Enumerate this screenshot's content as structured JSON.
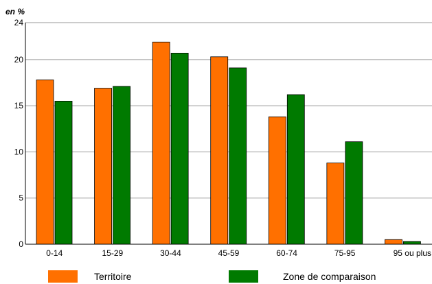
{
  "chart_data": {
    "type": "bar",
    "unit_label": "en %",
    "categories": [
      "0-14",
      "15-29",
      "30-44",
      "45-59",
      "60-74",
      "75-95",
      "95 ou plus"
    ],
    "series": [
      {
        "name": "Territoire",
        "color": "#ff7000",
        "values": [
          17.8,
          16.9,
          21.9,
          20.3,
          13.8,
          8.8,
          0.5
        ]
      },
      {
        "name": "Zone de comparaison",
        "color": "#007a00",
        "values": [
          15.5,
          17.1,
          20.7,
          19.1,
          16.2,
          11.1,
          0.3
        ]
      }
    ],
    "ylim": [
      0,
      24
    ],
    "yticks": [
      0,
      5,
      10,
      15,
      20,
      24
    ],
    "grid": true,
    "legend_position": "bottom",
    "xlabel": "",
    "ylabel": ""
  }
}
